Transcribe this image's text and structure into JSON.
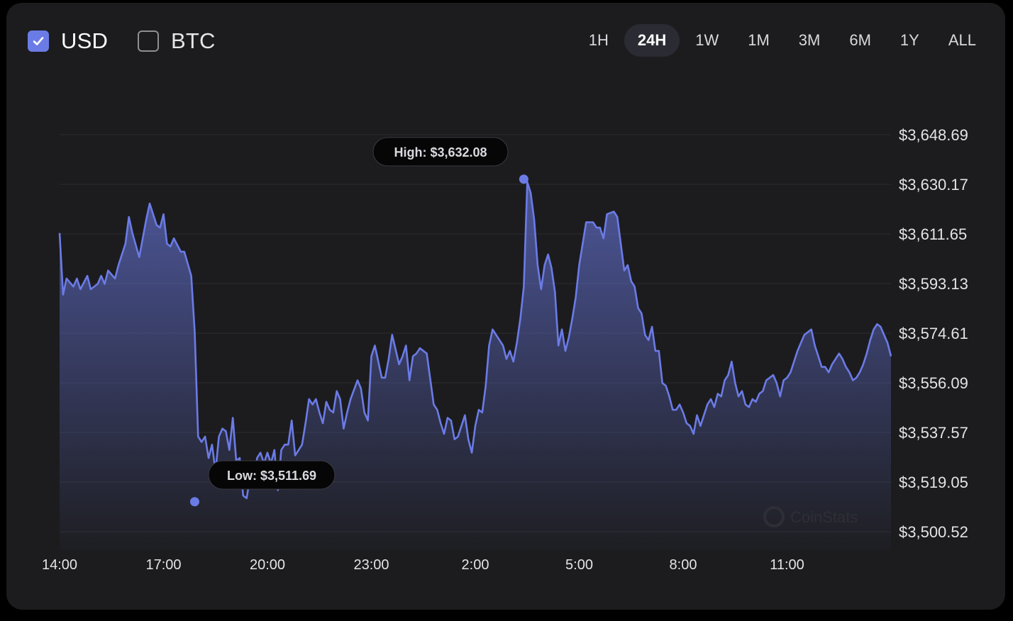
{
  "toggles": [
    {
      "label": "USD",
      "checked": true
    },
    {
      "label": "BTC",
      "checked": false
    }
  ],
  "ranges": {
    "items": [
      "1H",
      "24H",
      "1W",
      "1M",
      "3M",
      "6M",
      "1Y",
      "ALL"
    ],
    "active": "24H"
  },
  "watermark": "CoinStats",
  "colors": {
    "line": "#6b7be6",
    "accent": "#6b7be6",
    "background": "#1c1c1e"
  },
  "chart_data": {
    "type": "area",
    "title": "",
    "xlabel": "",
    "ylabel": "",
    "currency": "USD",
    "grid": true,
    "y_axis_position": "right",
    "y_ticks": [
      3500.52,
      3519.05,
      3537.57,
      3556.09,
      3574.61,
      3593.13,
      3611.65,
      3630.17,
      3648.69
    ],
    "y_tick_labels": [
      "$3,500.52",
      "$3,519.05",
      "$3,537.57",
      "$3,556.09",
      "$3,574.61",
      "$3,593.13",
      "$3,611.65",
      "$3,630.17",
      "$3,648.69"
    ],
    "ylim": [
      3495.0,
      3648.69
    ],
    "x_ticks": [
      0,
      3,
      6,
      9,
      12,
      15,
      18,
      21
    ],
    "x_tick_labels": [
      "14:00",
      "17:00",
      "20:00",
      "23:00",
      "2:00",
      "5:00",
      "8:00",
      "11:00"
    ],
    "x_unit": "hours from 14:00",
    "xlim": [
      0,
      24
    ],
    "high": {
      "value": 3632.08,
      "label": "High: $3,632.08",
      "x": 13.4
    },
    "low": {
      "value": 3511.69,
      "label": "Low: $3,511.69",
      "x": 3.9
    },
    "series": [
      {
        "values": [
          [
            0.0,
            3612
          ],
          [
            0.1,
            3589
          ],
          [
            0.2,
            3595
          ],
          [
            0.4,
            3592
          ],
          [
            0.5,
            3595
          ],
          [
            0.6,
            3591
          ],
          [
            0.8,
            3596
          ],
          [
            0.9,
            3591
          ],
          [
            1.1,
            3593
          ],
          [
            1.2,
            3596
          ],
          [
            1.3,
            3593
          ],
          [
            1.4,
            3598
          ],
          [
            1.6,
            3595
          ],
          [
            1.7,
            3600
          ],
          [
            1.9,
            3608
          ],
          [
            2.0,
            3618
          ],
          [
            2.1,
            3612
          ],
          [
            2.3,
            3603
          ],
          [
            2.4,
            3610
          ],
          [
            2.5,
            3617
          ],
          [
            2.6,
            3623
          ],
          [
            2.8,
            3615
          ],
          [
            2.9,
            3614
          ],
          [
            3.0,
            3619
          ],
          [
            3.1,
            3608
          ],
          [
            3.2,
            3607
          ],
          [
            3.3,
            3610
          ],
          [
            3.5,
            3605
          ],
          [
            3.6,
            3605
          ],
          [
            3.8,
            3596
          ],
          [
            3.9,
            3575
          ],
          [
            4.0,
            3536
          ],
          [
            4.1,
            3534
          ],
          [
            4.2,
            3536
          ],
          [
            4.3,
            3528
          ],
          [
            4.4,
            3533
          ],
          [
            4.5,
            3523
          ],
          [
            4.6,
            3536
          ],
          [
            4.7,
            3539
          ],
          [
            4.8,
            3538
          ],
          [
            4.9,
            3531
          ],
          [
            5.0,
            3543
          ],
          [
            5.1,
            3527
          ],
          [
            5.2,
            3528
          ],
          [
            5.3,
            3514
          ],
          [
            5.4,
            3513
          ],
          [
            5.5,
            3521
          ],
          [
            5.6,
            3518
          ],
          [
            5.7,
            3528
          ],
          [
            5.8,
            3530
          ],
          [
            5.9,
            3526
          ],
          [
            6.0,
            3530
          ],
          [
            6.1,
            3526
          ],
          [
            6.2,
            3531
          ],
          [
            6.3,
            3516
          ],
          [
            6.4,
            3531
          ],
          [
            6.5,
            3533
          ],
          [
            6.6,
            3533
          ],
          [
            6.7,
            3542
          ],
          [
            6.8,
            3529
          ],
          [
            6.9,
            3531
          ],
          [
            7.0,
            3533
          ],
          [
            7.1,
            3541
          ],
          [
            7.2,
            3550
          ],
          [
            7.3,
            3548
          ],
          [
            7.4,
            3550
          ],
          [
            7.5,
            3545
          ],
          [
            7.6,
            3541
          ],
          [
            7.7,
            3549
          ],
          [
            7.8,
            3546
          ],
          [
            7.9,
            3545
          ],
          [
            8.0,
            3553
          ],
          [
            8.1,
            3550
          ],
          [
            8.2,
            3539
          ],
          [
            8.3,
            3545
          ],
          [
            8.4,
            3550
          ],
          [
            8.6,
            3557
          ],
          [
            8.7,
            3554
          ],
          [
            8.8,
            3545
          ],
          [
            8.9,
            3542
          ],
          [
            9.0,
            3566
          ],
          [
            9.1,
            3570
          ],
          [
            9.3,
            3558
          ],
          [
            9.4,
            3558
          ],
          [
            9.5,
            3565
          ],
          [
            9.6,
            3574
          ],
          [
            9.8,
            3563
          ],
          [
            9.9,
            3566
          ],
          [
            10.0,
            3570
          ],
          [
            10.1,
            3557
          ],
          [
            10.2,
            3566
          ],
          [
            10.3,
            3567
          ],
          [
            10.4,
            3569
          ],
          [
            10.6,
            3567
          ],
          [
            10.8,
            3548
          ],
          [
            10.9,
            3546
          ],
          [
            11.0,
            3541
          ],
          [
            11.1,
            3537
          ],
          [
            11.2,
            3543
          ],
          [
            11.3,
            3542
          ],
          [
            11.4,
            3535
          ],
          [
            11.5,
            3536
          ],
          [
            11.7,
            3544
          ],
          [
            11.8,
            3535
          ],
          [
            11.9,
            3530
          ],
          [
            12.0,
            3540
          ],
          [
            12.1,
            3546
          ],
          [
            12.2,
            3545
          ],
          [
            12.3,
            3555
          ],
          [
            12.4,
            3570
          ],
          [
            12.5,
            3576
          ],
          [
            12.6,
            3574
          ],
          [
            12.7,
            3572
          ],
          [
            12.8,
            3570
          ],
          [
            12.9,
            3565
          ],
          [
            13.0,
            3568
          ],
          [
            13.1,
            3564
          ],
          [
            13.2,
            3571
          ],
          [
            13.3,
            3580
          ],
          [
            13.4,
            3592
          ],
          [
            13.5,
            3631
          ],
          [
            13.6,
            3627
          ],
          [
            13.7,
            3617
          ],
          [
            13.8,
            3600
          ],
          [
            13.9,
            3591
          ],
          [
            14.0,
            3600
          ],
          [
            14.1,
            3604
          ],
          [
            14.2,
            3599
          ],
          [
            14.3,
            3590
          ],
          [
            14.4,
            3570
          ],
          [
            14.5,
            3576
          ],
          [
            14.6,
            3568
          ],
          [
            14.7,
            3573
          ],
          [
            14.8,
            3580
          ],
          [
            14.9,
            3588
          ],
          [
            15.0,
            3600
          ],
          [
            15.2,
            3616
          ],
          [
            15.4,
            3616
          ],
          [
            15.5,
            3614
          ],
          [
            15.6,
            3614
          ],
          [
            15.7,
            3610
          ],
          [
            15.8,
            3619
          ],
          [
            16.0,
            3620
          ],
          [
            16.1,
            3618
          ],
          [
            16.2,
            3608
          ],
          [
            16.3,
            3598
          ],
          [
            16.4,
            3600
          ],
          [
            16.5,
            3594
          ],
          [
            16.6,
            3592
          ],
          [
            16.7,
            3584
          ],
          [
            16.8,
            3582
          ],
          [
            16.9,
            3574
          ],
          [
            17.0,
            3572
          ],
          [
            17.1,
            3577
          ],
          [
            17.2,
            3568
          ],
          [
            17.3,
            3568
          ],
          [
            17.4,
            3556
          ],
          [
            17.5,
            3555
          ],
          [
            17.6,
            3551
          ],
          [
            17.7,
            3546
          ],
          [
            17.8,
            3546
          ],
          [
            17.9,
            3548
          ],
          [
            18.0,
            3545
          ],
          [
            18.1,
            3541
          ],
          [
            18.2,
            3540
          ],
          [
            18.3,
            3537
          ],
          [
            18.4,
            3544
          ],
          [
            18.5,
            3540
          ],
          [
            18.6,
            3544
          ],
          [
            18.7,
            3548
          ],
          [
            18.8,
            3550
          ],
          [
            18.9,
            3547
          ],
          [
            19.0,
            3552
          ],
          [
            19.1,
            3551
          ],
          [
            19.2,
            3557
          ],
          [
            19.3,
            3559
          ],
          [
            19.4,
            3564
          ],
          [
            19.5,
            3556
          ],
          [
            19.6,
            3551
          ],
          [
            19.7,
            3553
          ],
          [
            19.8,
            3548
          ],
          [
            19.9,
            3547
          ],
          [
            20.0,
            3550
          ],
          [
            20.1,
            3549
          ],
          [
            20.2,
            3552
          ],
          [
            20.3,
            3553
          ],
          [
            20.4,
            3557
          ],
          [
            20.5,
            3558
          ],
          [
            20.6,
            3559
          ],
          [
            20.7,
            3556
          ],
          [
            20.8,
            3551
          ],
          [
            20.9,
            3557
          ],
          [
            21.0,
            3558
          ],
          [
            21.1,
            3560
          ],
          [
            21.2,
            3564
          ],
          [
            21.3,
            3568
          ],
          [
            21.4,
            3571
          ],
          [
            21.5,
            3574
          ],
          [
            21.6,
            3575
          ],
          [
            21.7,
            3576
          ],
          [
            21.8,
            3570
          ],
          [
            21.9,
            3566
          ],
          [
            22.0,
            3562
          ],
          [
            22.1,
            3562
          ],
          [
            22.2,
            3560
          ],
          [
            22.3,
            3563
          ],
          [
            22.4,
            3565
          ],
          [
            22.5,
            3567
          ],
          [
            22.6,
            3565
          ],
          [
            22.7,
            3562
          ],
          [
            22.8,
            3560
          ],
          [
            22.9,
            3557
          ],
          [
            23.0,
            3558
          ],
          [
            23.1,
            3560
          ],
          [
            23.2,
            3563
          ],
          [
            23.3,
            3567
          ],
          [
            23.4,
            3572
          ],
          [
            23.5,
            3576
          ],
          [
            23.6,
            3578
          ],
          [
            23.7,
            3577
          ],
          [
            23.8,
            3574
          ],
          [
            23.9,
            3571
          ],
          [
            24.0,
            3566
          ]
        ]
      }
    ]
  }
}
